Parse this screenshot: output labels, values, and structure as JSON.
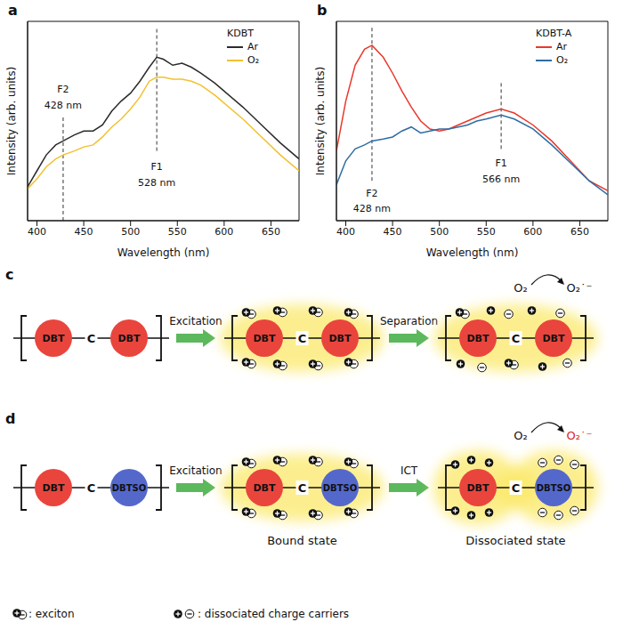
{
  "chart_data": [
    {
      "panel": "a",
      "type": "line",
      "x_label": "Wavelength (nm)",
      "y_label": "Intensity (arb. units)",
      "legend_title": "KDBT",
      "legend": "upper right",
      "tick_labels": "x",
      "xlim": [
        390,
        680
      ],
      "xticks": [
        400,
        450,
        500,
        550,
        600,
        650
      ],
      "ylim": [
        0,
        1
      ],
      "x": [
        390,
        400,
        410,
        420,
        428,
        440,
        450,
        460,
        470,
        480,
        490,
        500,
        510,
        520,
        528,
        535,
        545,
        555,
        565,
        575,
        590,
        600,
        620,
        640,
        660,
        680
      ],
      "series": [
        {
          "name": "Ar",
          "color": "#2b2b2b",
          "values": [
            0.17,
            0.25,
            0.33,
            0.38,
            0.4,
            0.43,
            0.45,
            0.45,
            0.48,
            0.55,
            0.6,
            0.64,
            0.7,
            0.77,
            0.82,
            0.81,
            0.78,
            0.79,
            0.77,
            0.74,
            0.69,
            0.65,
            0.57,
            0.48,
            0.39,
            0.31
          ]
        },
        {
          "name": "O₂",
          "color": "#f2c12e",
          "values": [
            0.16,
            0.21,
            0.27,
            0.31,
            0.33,
            0.35,
            0.37,
            0.38,
            0.42,
            0.47,
            0.51,
            0.56,
            0.62,
            0.7,
            0.72,
            0.72,
            0.71,
            0.71,
            0.7,
            0.68,
            0.63,
            0.59,
            0.51,
            0.42,
            0.33,
            0.25
          ]
        }
      ],
      "annotations": [
        {
          "x": 428,
          "name": "F2",
          "label": "428 nm"
        },
        {
          "x": 528,
          "name": "F1",
          "label": "528 nm"
        }
      ]
    },
    {
      "panel": "b",
      "type": "line",
      "x_label": "Wavelength (nm)",
      "y_label": "Intensity (arb. units)",
      "legend_title": "KDBT-A",
      "legend": "upper right",
      "tick_labels": "x",
      "xlim": [
        390,
        680
      ],
      "xticks": [
        400,
        450,
        500,
        550,
        600,
        650
      ],
      "ylim": [
        0,
        1
      ],
      "x": [
        390,
        400,
        410,
        420,
        428,
        440,
        450,
        460,
        470,
        480,
        490,
        500,
        510,
        520,
        530,
        540,
        550,
        566,
        580,
        600,
        620,
        640,
        660,
        680
      ],
      "series": [
        {
          "name": "Ar",
          "color": "#e8392b",
          "values": [
            0.35,
            0.6,
            0.78,
            0.86,
            0.88,
            0.82,
            0.74,
            0.65,
            0.57,
            0.5,
            0.46,
            0.45,
            0.46,
            0.48,
            0.5,
            0.52,
            0.54,
            0.56,
            0.54,
            0.48,
            0.4,
            0.3,
            0.2,
            0.15
          ]
        },
        {
          "name": "O₂",
          "color": "#2e6da4",
          "values": [
            0.18,
            0.3,
            0.36,
            0.38,
            0.4,
            0.41,
            0.42,
            0.45,
            0.47,
            0.44,
            0.45,
            0.46,
            0.46,
            0.47,
            0.48,
            0.5,
            0.51,
            0.53,
            0.51,
            0.46,
            0.38,
            0.29,
            0.2,
            0.13
          ]
        }
      ],
      "annotations": [
        {
          "x": 428,
          "name": "F2",
          "label": "428 nm"
        },
        {
          "x": 566,
          "name": "F1",
          "label": "566 nm"
        }
      ]
    }
  ],
  "diagram": {
    "c": {
      "panel": "c",
      "units": [
        "DBT",
        "C",
        "DBT"
      ],
      "steps": [
        "Excitation",
        "Separation"
      ],
      "reactant": "O₂",
      "product": "O₂˙⁻"
    },
    "d": {
      "panel": "d",
      "units": [
        "DBT",
        "C",
        "DBTSO"
      ],
      "steps": [
        "Excitation",
        "ICT"
      ],
      "states": [
        "Bound state",
        "Dissociated state"
      ],
      "reactant": "O₂",
      "product": "O₂˙⁻"
    },
    "key": {
      "exciton": ": exciton",
      "carriers": ": dissociated charge carriers"
    }
  }
}
